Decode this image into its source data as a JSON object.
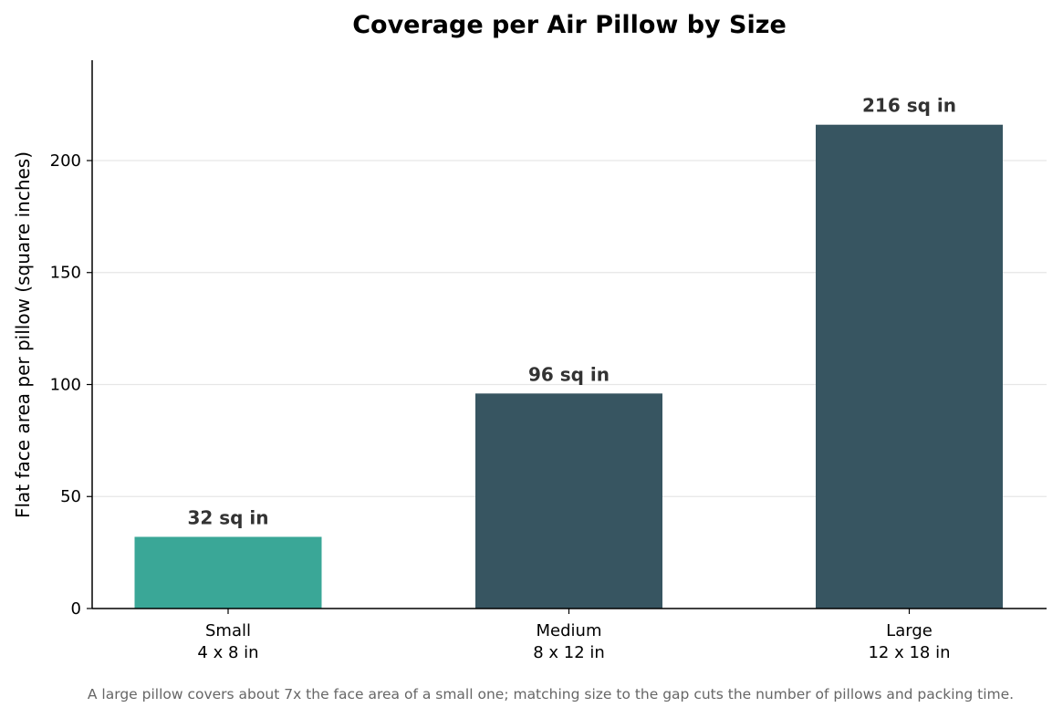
{
  "chart_data": {
    "type": "bar",
    "title": "Coverage per Air Pillow by Size",
    "xlabel": "",
    "ylabel": "Flat face area per pillow (square inches)",
    "categories": [
      "Small",
      "Medium",
      "Large"
    ],
    "category_sublabels": [
      "4 x 8 in",
      "8 x 12 in",
      "12 x 18 in"
    ],
    "values": [
      32,
      96,
      216
    ],
    "data_labels": [
      "32 sq in",
      "96 sq in",
      "216 sq in"
    ],
    "bar_colors": [
      "#3aa797",
      "#375561",
      "#375561"
    ],
    "ylim": [
      0,
      244.8
    ],
    "yticks": [
      0,
      50,
      100,
      150,
      200
    ],
    "grid": "horizontal",
    "legend": "none"
  },
  "footnote": "A large pillow covers about 7x the face area of a small one; matching size to the gap cuts the number of pillows and packing time."
}
